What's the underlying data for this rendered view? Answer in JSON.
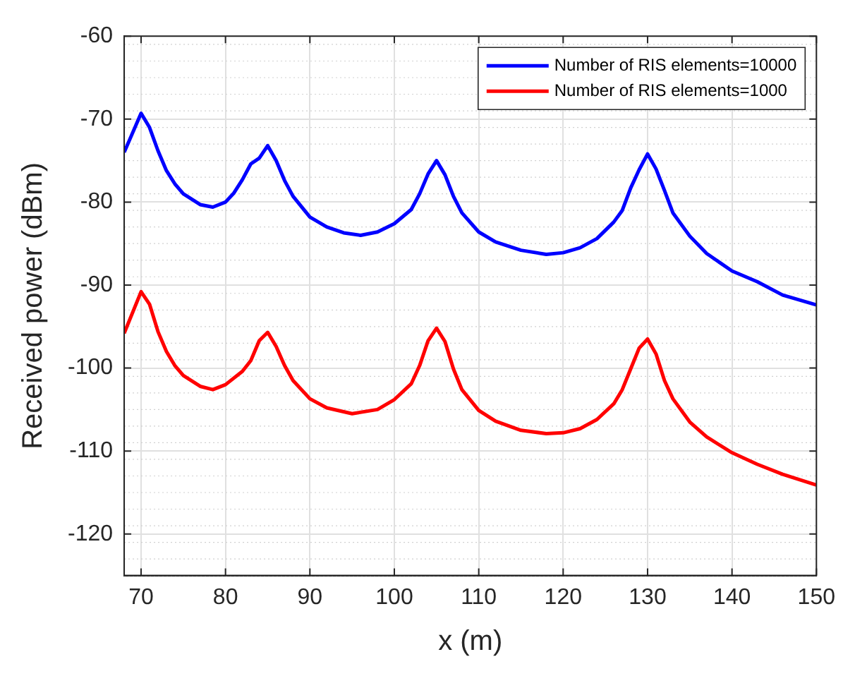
{
  "chart_data": {
    "type": "line",
    "xlabel": "x (m)",
    "ylabel": "Received power (dBm)",
    "xlim": [
      68,
      150
    ],
    "xticks": [
      70,
      80,
      90,
      100,
      110,
      120,
      130,
      140,
      150
    ],
    "ylim": [
      -125,
      -60
    ],
    "yticks": [
      -120,
      -110,
      -100,
      -90,
      -80,
      -70,
      -60
    ],
    "grid": true,
    "legend": "top right",
    "marker": "none",
    "line_style": "solid",
    "series": [
      {
        "name": "Number of RIS elements=10000",
        "color": "#0000ff",
        "x": [
          68,
          70,
          71,
          72,
          73,
          74,
          75,
          77,
          78.5,
          80,
          81,
          82,
          83,
          84,
          85,
          86,
          87,
          88,
          90,
          92,
          94,
          96,
          98,
          100,
          102,
          103,
          104,
          105,
          106,
          107,
          108,
          110,
          112,
          115,
          118,
          120,
          122,
          124,
          126,
          127,
          128,
          129,
          130,
          131,
          132,
          133,
          135,
          137,
          140,
          143,
          146,
          150
        ],
        "values": [
          -74.0,
          -69.3,
          -71.0,
          -73.8,
          -76.2,
          -77.8,
          -79.0,
          -80.3,
          -80.6,
          -80.0,
          -78.9,
          -77.3,
          -75.4,
          -74.7,
          -73.2,
          -75.0,
          -77.4,
          -79.3,
          -81.8,
          -83.0,
          -83.7,
          -84.0,
          -83.6,
          -82.6,
          -80.9,
          -79.0,
          -76.6,
          -75.0,
          -76.7,
          -79.3,
          -81.3,
          -83.6,
          -84.8,
          -85.8,
          -86.3,
          -86.1,
          -85.5,
          -84.4,
          -82.4,
          -81.0,
          -78.3,
          -76.1,
          -74.2,
          -76.0,
          -78.6,
          -81.3,
          -84.1,
          -86.2,
          -88.3,
          -89.6,
          -91.2,
          -92.4
        ]
      },
      {
        "name": "Number of RIS elements=1000",
        "color": "#ff0000",
        "x": [
          68,
          70,
          71,
          72,
          73,
          74,
          75,
          77,
          78.5,
          80,
          82,
          83,
          84,
          85,
          86,
          87,
          88,
          90,
          92,
          95,
          98,
          100,
          102,
          103,
          104,
          105,
          106,
          107,
          108,
          110,
          112,
          115,
          118,
          120,
          122,
          124,
          126,
          127,
          128,
          129,
          130,
          131,
          132,
          133,
          135,
          137,
          140,
          143,
          146,
          150
        ],
        "values": [
          -95.8,
          -90.8,
          -92.3,
          -95.6,
          -98.0,
          -99.7,
          -100.9,
          -102.2,
          -102.6,
          -102.0,
          -100.4,
          -99.1,
          -96.7,
          -95.7,
          -97.4,
          -99.7,
          -101.5,
          -103.7,
          -104.8,
          -105.5,
          -105.0,
          -103.8,
          -101.9,
          -99.7,
          -96.7,
          -95.2,
          -96.8,
          -100.1,
          -102.6,
          -105.1,
          -106.4,
          -107.5,
          -107.9,
          -107.8,
          -107.3,
          -106.2,
          -104.3,
          -102.6,
          -100.1,
          -97.6,
          -96.5,
          -98.3,
          -101.5,
          -103.7,
          -106.5,
          -108.3,
          -110.2,
          -111.6,
          -112.8,
          -114.1
        ]
      }
    ]
  }
}
